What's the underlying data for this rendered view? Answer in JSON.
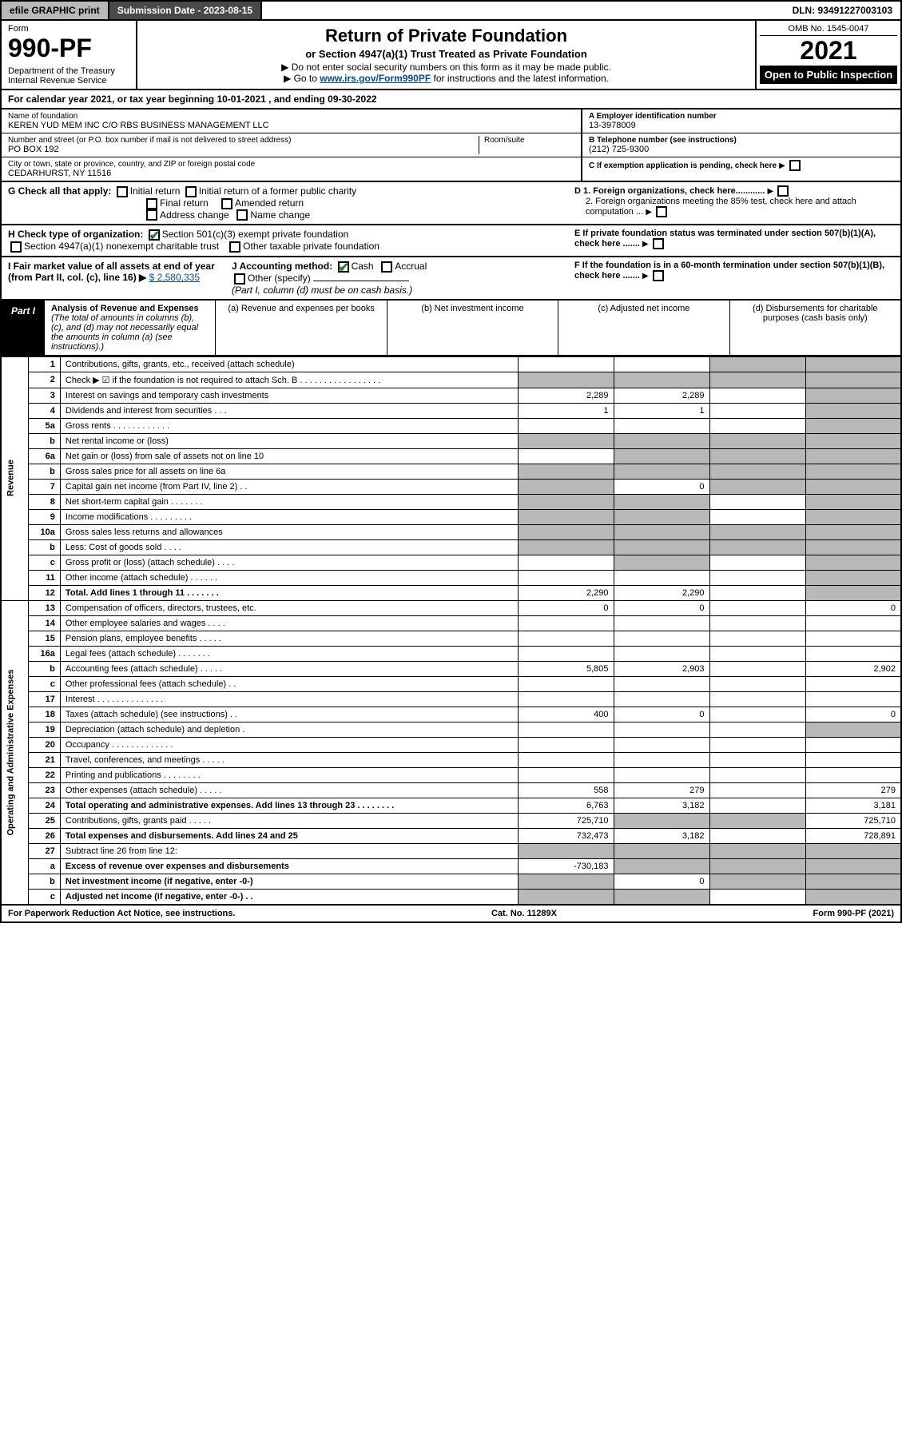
{
  "topbar": {
    "efile": "efile GRAPHIC print",
    "submission": "Submission Date - 2023-08-15",
    "dln": "DLN: 93491227003103"
  },
  "header": {
    "formword": "Form",
    "formnum": "990-PF",
    "dept": "Department of the Treasury\nInternal Revenue Service",
    "title": "Return of Private Foundation",
    "sub": "or Section 4947(a)(1) Trust Treated as Private Foundation",
    "note1": "▶ Do not enter social security numbers on this form as it may be made public.",
    "note2": "▶ Go to ",
    "link": "www.irs.gov/Form990PF",
    "note3": " for instructions and the latest information.",
    "omb": "OMB No. 1545-0047",
    "year": "2021",
    "open": "Open to Public Inspection"
  },
  "cal": "For calendar year 2021, or tax year beginning 10-01-2021            , and ending 09-30-2022",
  "info": {
    "name_lbl": "Name of foundation",
    "name": "KEREN YUD MEM INC\nC/O RBS BUSINESS MANAGEMENT LLC",
    "addr_lbl": "Number and street (or P.O. box number if mail is not delivered to street address)",
    "addr": "PO BOX 192",
    "room_lbl": "Room/suite",
    "city_lbl": "City or town, state or province, country, and ZIP or foreign postal code",
    "city": "CEDARHURST, NY  11516",
    "ein_lbl": "A Employer identification number",
    "ein": "13-3978009",
    "tel_lbl": "B Telephone number (see instructions)",
    "tel": "(212) 725-9300",
    "c_lbl": "C If exemption application is pending, check here",
    "d1": "D 1. Foreign organizations, check here............",
    "d2": "2. Foreign organizations meeting the 85% test, check here and attach computation ...",
    "e": "E  If private foundation status was terminated under section 507(b)(1)(A), check here .......",
    "f": "F  If the foundation is in a 60-month termination under section 507(b)(1)(B), check here .......",
    "g": "G Check all that apply:",
    "g_items": [
      "Initial return",
      "Initial return of a former public charity",
      "Final return",
      "Amended return",
      "Address change",
      "Name change"
    ],
    "h": "H Check type of organization:",
    "h1": "Section 501(c)(3) exempt private foundation",
    "h2": "Section 4947(a)(1) nonexempt charitable trust",
    "h3": "Other taxable private foundation",
    "i": "I Fair market value of all assets at end of year (from Part II, col. (c), line 16) ▶",
    "i_val": "$  2,580,335",
    "j": "J Accounting method:",
    "j1": "Cash",
    "j2": "Accrual",
    "j3": "Other (specify)",
    "j_note": "(Part I, column (d) must be on cash basis.)"
  },
  "part1": {
    "label": "Part I",
    "title": "Analysis of Revenue and Expenses",
    "desc": "(The total of amounts in columns (b), (c), and (d) may not necessarily equal the amounts in column (a) (see instructions).)",
    "col_a": "(a) Revenue and expenses per books",
    "col_b": "(b) Net investment income",
    "col_c": "(c) Adjusted net income",
    "col_d": "(d) Disbursements for charitable purposes (cash basis only)"
  },
  "sections": {
    "rev": "Revenue",
    "exp": "Operating and Administrative Expenses"
  },
  "rows": [
    {
      "n": "1",
      "d": "Contributions, gifts, grants, etc., received (attach schedule)",
      "a": "",
      "b": "",
      "c": "g",
      "dd": "g"
    },
    {
      "n": "2",
      "d": "Check ▶ ☑ if the foundation is not required to attach Sch. B  . . . . . . . . . . . . . . . . .",
      "a": "g",
      "b": "g",
      "c": "g",
      "dd": "g"
    },
    {
      "n": "3",
      "d": "Interest on savings and temporary cash investments",
      "a": "2,289",
      "b": "2,289",
      "c": "",
      "dd": "g"
    },
    {
      "n": "4",
      "d": "Dividends and interest from securities  . . .",
      "a": "1",
      "b": "1",
      "c": "",
      "dd": "g"
    },
    {
      "n": "5a",
      "d": "Gross rents  . . . . . . . . . . . .",
      "a": "",
      "b": "",
      "c": "",
      "dd": "g"
    },
    {
      "n": "b",
      "d": "Net rental income or (loss)  ",
      "a": "g",
      "b": "g",
      "c": "g",
      "dd": "g"
    },
    {
      "n": "6a",
      "d": "Net gain or (loss) from sale of assets not on line 10",
      "a": "",
      "b": "g",
      "c": "g",
      "dd": "g"
    },
    {
      "n": "b",
      "d": "Gross sales price for all assets on line 6a ",
      "a": "g",
      "b": "g",
      "c": "g",
      "dd": "g"
    },
    {
      "n": "7",
      "d": "Capital gain net income (from Part IV, line 2)  . .",
      "a": "g",
      "b": "0",
      "c": "g",
      "dd": "g"
    },
    {
      "n": "8",
      "d": "Net short-term capital gain  . . . . . . .",
      "a": "g",
      "b": "g",
      "c": "",
      "dd": "g"
    },
    {
      "n": "9",
      "d": "Income modifications  . . . . . . . . .",
      "a": "g",
      "b": "g",
      "c": "",
      "dd": "g"
    },
    {
      "n": "10a",
      "d": "Gross sales less returns and allowances ",
      "a": "g",
      "b": "g",
      "c": "g",
      "dd": "g"
    },
    {
      "n": "b",
      "d": "Less: Cost of goods sold  . . . . ",
      "a": "g",
      "b": "g",
      "c": "g",
      "dd": "g"
    },
    {
      "n": "c",
      "d": "Gross profit or (loss) (attach schedule)  . . . .",
      "a": "",
      "b": "g",
      "c": "",
      "dd": "g"
    },
    {
      "n": "11",
      "d": "Other income (attach schedule)  . . . . . .",
      "a": "",
      "b": "",
      "c": "",
      "dd": "g"
    },
    {
      "n": "12",
      "d": "Total. Add lines 1 through 11  . . . . . . .",
      "a": "2,290",
      "b": "2,290",
      "c": "",
      "dd": "g",
      "bold": true
    },
    {
      "n": "13",
      "d": "Compensation of officers, directors, trustees, etc.",
      "a": "0",
      "b": "0",
      "c": "",
      "dd": "0"
    },
    {
      "n": "14",
      "d": "Other employee salaries and wages  . . . .",
      "a": "",
      "b": "",
      "c": "",
      "dd": ""
    },
    {
      "n": "15",
      "d": "Pension plans, employee benefits  . . . . .",
      "a": "",
      "b": "",
      "c": "",
      "dd": ""
    },
    {
      "n": "16a",
      "d": "Legal fees (attach schedule)  . . . . . . .",
      "a": "",
      "b": "",
      "c": "",
      "dd": ""
    },
    {
      "n": "b",
      "d": "Accounting fees (attach schedule)  . . . . .",
      "a": "5,805",
      "b": "2,903",
      "c": "",
      "dd": "2,902"
    },
    {
      "n": "c",
      "d": "Other professional fees (attach schedule)  . .",
      "a": "",
      "b": "",
      "c": "",
      "dd": ""
    },
    {
      "n": "17",
      "d": "Interest  . . . . . . . . . . . . . .",
      "a": "",
      "b": "",
      "c": "",
      "dd": ""
    },
    {
      "n": "18",
      "d": "Taxes (attach schedule) (see instructions)  . .",
      "a": "400",
      "b": "0",
      "c": "",
      "dd": "0"
    },
    {
      "n": "19",
      "d": "Depreciation (attach schedule) and depletion  .",
      "a": "",
      "b": "",
      "c": "",
      "dd": "g"
    },
    {
      "n": "20",
      "d": "Occupancy  . . . . . . . . . . . . .",
      "a": "",
      "b": "",
      "c": "",
      "dd": ""
    },
    {
      "n": "21",
      "d": "Travel, conferences, and meetings  . . . . .",
      "a": "",
      "b": "",
      "c": "",
      "dd": ""
    },
    {
      "n": "22",
      "d": "Printing and publications  . . . . . . . .",
      "a": "",
      "b": "",
      "c": "",
      "dd": ""
    },
    {
      "n": "23",
      "d": "Other expenses (attach schedule)  . . . . .",
      "a": "558",
      "b": "279",
      "c": "",
      "dd": "279"
    },
    {
      "n": "24",
      "d": "Total operating and administrative expenses. Add lines 13 through 23  . . . . . . . .",
      "a": "6,763",
      "b": "3,182",
      "c": "",
      "dd": "3,181",
      "bold": true
    },
    {
      "n": "25",
      "d": "Contributions, gifts, grants paid  . . . . .",
      "a": "725,710",
      "b": "g",
      "c": "g",
      "dd": "725,710"
    },
    {
      "n": "26",
      "d": "Total expenses and disbursements. Add lines 24 and 25",
      "a": "732,473",
      "b": "3,182",
      "c": "",
      "dd": "728,891",
      "bold": true
    },
    {
      "n": "27",
      "d": "Subtract line 26 from line 12:",
      "a": "g",
      "b": "g",
      "c": "g",
      "dd": "g"
    },
    {
      "n": "a",
      "d": "Excess of revenue over expenses and disbursements",
      "a": "-730,183",
      "b": "g",
      "c": "g",
      "dd": "g",
      "bold": true
    },
    {
      "n": "b",
      "d": "Net investment income (if negative, enter -0-)",
      "a": "g",
      "b": "0",
      "c": "g",
      "dd": "g",
      "bold": true
    },
    {
      "n": "c",
      "d": "Adjusted net income (if negative, enter -0-)  . .",
      "a": "g",
      "b": "g",
      "c": "",
      "dd": "g",
      "bold": true
    }
  ],
  "foot": {
    "l": "For Paperwork Reduction Act Notice, see instructions.",
    "m": "Cat. No. 11289X",
    "r": "Form 990-PF (2021)"
  }
}
